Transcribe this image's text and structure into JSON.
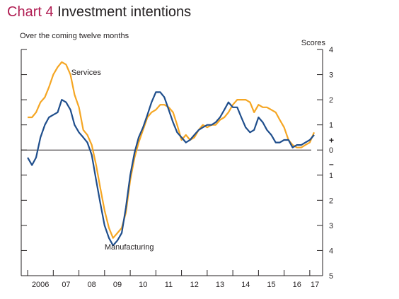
{
  "title": {
    "number": "Chart 4",
    "text": "Investment intentions"
  },
  "subtitle": "Over the coming twelve months",
  "colors": {
    "services": "#f5a623",
    "manufacturing": "#1f4e8c",
    "title_accent": "#b01c52",
    "axis": "#231f20"
  },
  "chart_data": {
    "type": "line",
    "title": "Investment intentions",
    "subtitle": "Over the coming twelve months",
    "xlabel": "",
    "ylabel": "Scores",
    "x_range": [
      2005.75,
      2017.5
    ],
    "y_range": [
      -5,
      4
    ],
    "y_ticks": [
      {
        "value": 4,
        "label": "4"
      },
      {
        "value": 3,
        "label": "3"
      },
      {
        "value": 2,
        "label": "2"
      },
      {
        "value": 1,
        "label": "1"
      },
      {
        "value": 0,
        "label": "0"
      },
      {
        "value": -1,
        "label": "1"
      },
      {
        "value": -2,
        "label": "2"
      },
      {
        "value": -3,
        "label": "3"
      },
      {
        "value": -4,
        "label": "4"
      },
      {
        "value": -5,
        "label": "5"
      }
    ],
    "x_ticks": [
      {
        "value": 2006.5,
        "label": "2006"
      },
      {
        "value": 2007.5,
        "label": "07"
      },
      {
        "value": 2008.5,
        "label": "08"
      },
      {
        "value": 2009.5,
        "label": "09"
      },
      {
        "value": 2010.5,
        "label": "10"
      },
      {
        "value": 2011.5,
        "label": "11"
      },
      {
        "value": 2012.5,
        "label": "12"
      },
      {
        "value": 2013.5,
        "label": "13"
      },
      {
        "value": 2014.5,
        "label": "14"
      },
      {
        "value": 2015.5,
        "label": "15"
      },
      {
        "value": 2016.5,
        "label": "16"
      },
      {
        "value": 2017.2,
        "label": "17"
      }
    ],
    "sign_markers": {
      "plus": "+",
      "minus": "–"
    },
    "grid": false,
    "series": [
      {
        "name": "Services",
        "color": "#f5a623",
        "x": [
          2006.0,
          2006.17,
          2006.33,
          2006.5,
          2006.67,
          2006.83,
          2007.0,
          2007.17,
          2007.33,
          2007.5,
          2007.67,
          2007.83,
          2008.0,
          2008.17,
          2008.33,
          2008.5,
          2008.67,
          2008.83,
          2009.0,
          2009.17,
          2009.33,
          2009.5,
          2009.67,
          2009.83,
          2010.0,
          2010.17,
          2010.33,
          2010.5,
          2010.67,
          2010.83,
          2011.0,
          2011.17,
          2011.33,
          2011.5,
          2011.67,
          2011.83,
          2012.0,
          2012.17,
          2012.33,
          2012.5,
          2012.67,
          2012.83,
          2013.0,
          2013.17,
          2013.33,
          2013.5,
          2013.67,
          2013.83,
          2014.0,
          2014.17,
          2014.33,
          2014.5,
          2014.67,
          2014.83,
          2015.0,
          2015.17,
          2015.33,
          2015.5,
          2015.67,
          2015.83,
          2016.0,
          2016.17,
          2016.33,
          2016.5,
          2016.67,
          2016.83,
          2017.0,
          2017.17
        ],
        "values": [
          1.3,
          1.3,
          1.5,
          1.9,
          2.1,
          2.5,
          3.0,
          3.3,
          3.5,
          3.4,
          3.0,
          2.2,
          1.7,
          0.8,
          0.6,
          0.2,
          -0.6,
          -1.5,
          -2.4,
          -3.1,
          -3.5,
          -3.3,
          -3.1,
          -2.5,
          -1.2,
          -0.3,
          0.3,
          0.8,
          1.3,
          1.5,
          1.6,
          1.8,
          1.8,
          1.7,
          1.5,
          1.0,
          0.4,
          0.6,
          0.4,
          0.5,
          0.8,
          1.0,
          0.9,
          1.0,
          1.0,
          1.2,
          1.3,
          1.5,
          1.8,
          2.0,
          2.0,
          2.0,
          1.9,
          1.5,
          1.8,
          1.7,
          1.7,
          1.6,
          1.5,
          1.2,
          0.9,
          0.4,
          0.2,
          0.1,
          0.1,
          0.2,
          0.3,
          0.7
        ]
      },
      {
        "name": "Manufacturing",
        "color": "#1f4e8c",
        "x": [
          2006.0,
          2006.17,
          2006.33,
          2006.5,
          2006.67,
          2006.83,
          2007.0,
          2007.17,
          2007.33,
          2007.5,
          2007.67,
          2007.83,
          2008.0,
          2008.17,
          2008.33,
          2008.5,
          2008.67,
          2008.83,
          2009.0,
          2009.17,
          2009.33,
          2009.5,
          2009.67,
          2009.83,
          2010.0,
          2010.17,
          2010.33,
          2010.5,
          2010.67,
          2010.83,
          2011.0,
          2011.17,
          2011.33,
          2011.5,
          2011.67,
          2011.83,
          2012.0,
          2012.17,
          2012.33,
          2012.5,
          2012.67,
          2012.83,
          2013.0,
          2013.17,
          2013.33,
          2013.5,
          2013.67,
          2013.83,
          2014.0,
          2014.17,
          2014.33,
          2014.5,
          2014.67,
          2014.83,
          2015.0,
          2015.17,
          2015.33,
          2015.5,
          2015.67,
          2015.83,
          2016.0,
          2016.17,
          2016.33,
          2016.5,
          2016.67,
          2016.83,
          2017.0,
          2017.17
        ],
        "values": [
          -0.3,
          -0.6,
          -0.3,
          0.5,
          1.0,
          1.3,
          1.4,
          1.5,
          2.0,
          1.9,
          1.6,
          1.0,
          0.7,
          0.5,
          0.3,
          -0.2,
          -1.2,
          -2.1,
          -3.0,
          -3.5,
          -3.8,
          -3.6,
          -3.3,
          -2.3,
          -1.0,
          -0.1,
          0.5,
          0.9,
          1.4,
          1.9,
          2.3,
          2.3,
          2.1,
          1.6,
          1.1,
          0.7,
          0.5,
          0.3,
          0.4,
          0.6,
          0.8,
          0.9,
          1.0,
          1.0,
          1.1,
          1.3,
          1.6,
          1.9,
          1.7,
          1.7,
          1.3,
          0.9,
          0.7,
          0.8,
          1.3,
          1.1,
          0.8,
          0.6,
          0.3,
          0.3,
          0.4,
          0.4,
          0.1,
          0.2,
          0.2,
          0.3,
          0.4,
          0.6
        ]
      }
    ],
    "annotations": [
      {
        "text": "Services",
        "x": 2007.7,
        "y": 3.1
      },
      {
        "text": "Manufacturing",
        "x": 2009.0,
        "y": -3.85
      }
    ]
  }
}
